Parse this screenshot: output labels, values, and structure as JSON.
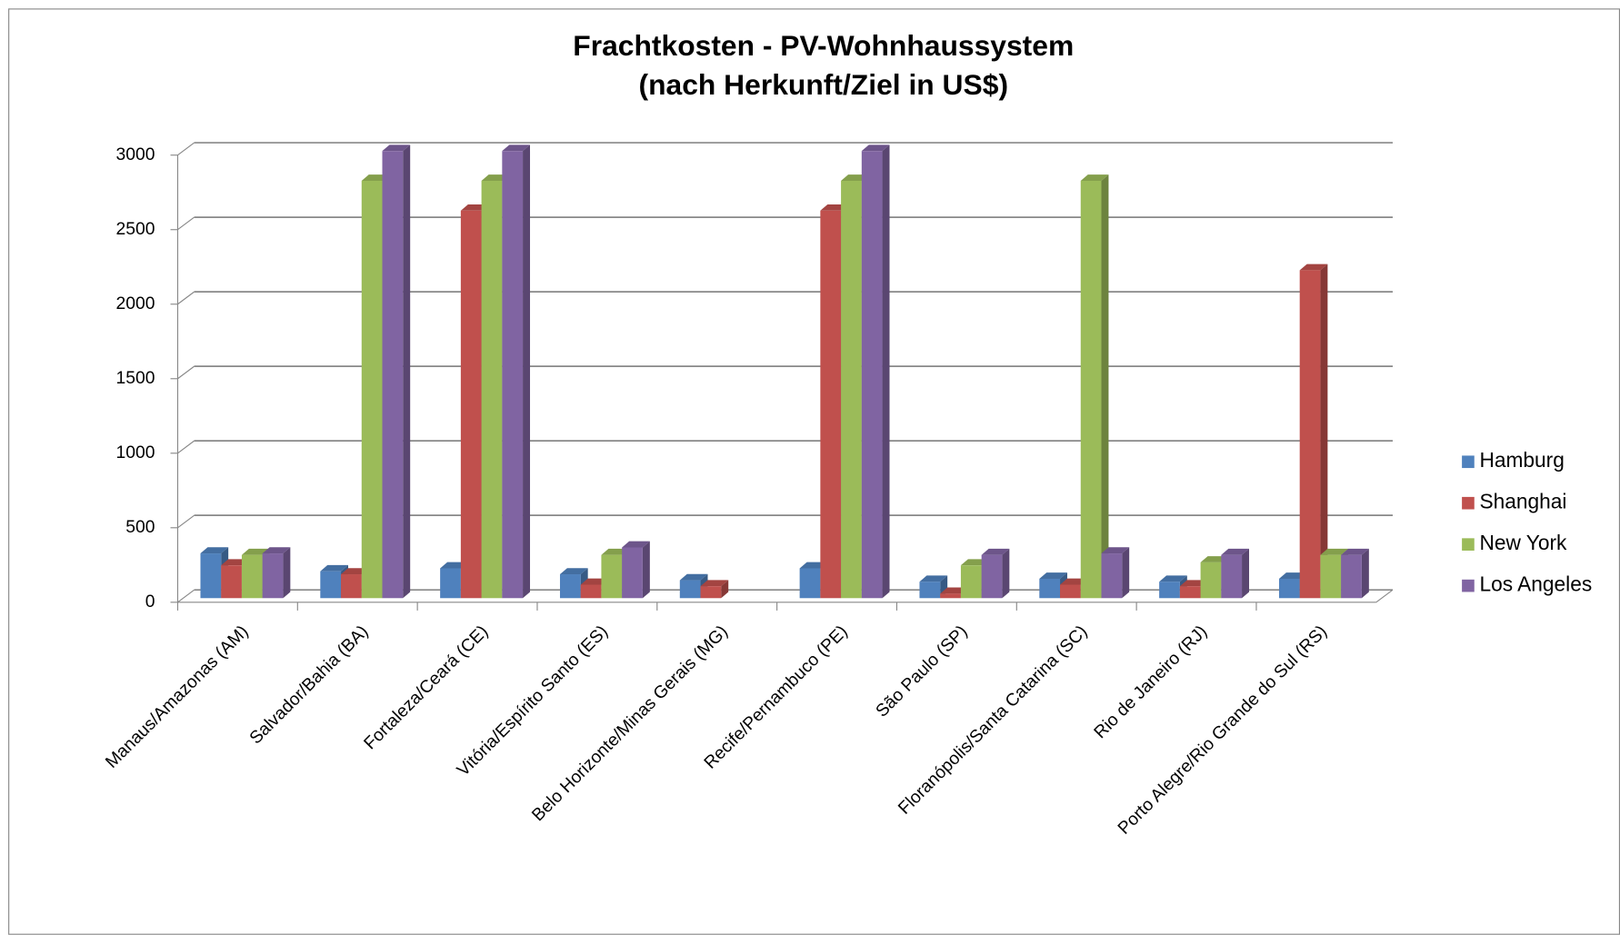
{
  "chart_data": {
    "type": "bar3d",
    "title": "Frachtkosten - PV-Wohnhaussystem",
    "subtitle": "(nach Herkunft/Ziel in US$)",
    "categories": [
      "Manaus/Amazonas (AM)",
      "Salvador/Bahia (BA)",
      "Fortaleza/Ceará (CE)",
      "Vitória/Espírito Santo (ES)",
      "Belo Horizonte/Minas Gerais (MG)",
      "Recife/Pernambuco (PE)",
      "São Paulo (SP)",
      "Floranópolis/Santa Catarina (SC)",
      "Rio de Janeiro (RJ)",
      "Porto Alegre/Rio Grande do Sul (RS)"
    ],
    "series": [
      {
        "name": "Hamburg",
        "color": "#4f81bd",
        "values": [
          300,
          180,
          200,
          160,
          120,
          200,
          110,
          130,
          110,
          130
        ]
      },
      {
        "name": "Shanghai",
        "color": "#c0504d",
        "values": [
          220,
          160,
          2600,
          90,
          80,
          2600,
          30,
          90,
          80,
          2200
        ]
      },
      {
        "name": "New York",
        "color": "#9bbb59",
        "values": [
          290,
          2800,
          2800,
          290,
          null,
          2800,
          220,
          2800,
          240,
          290
        ]
      },
      {
        "name": "Los Angeles",
        "color": "#8064a2",
        "values": [
          300,
          3000,
          3000,
          340,
          null,
          3000,
          290,
          300,
          290,
          290
        ]
      }
    ],
    "ylim": [
      0,
      3000
    ],
    "yticks": [
      0,
      500,
      1000,
      1500,
      2000,
      2500,
      3000
    ],
    "grid": true,
    "legend": "right"
  }
}
